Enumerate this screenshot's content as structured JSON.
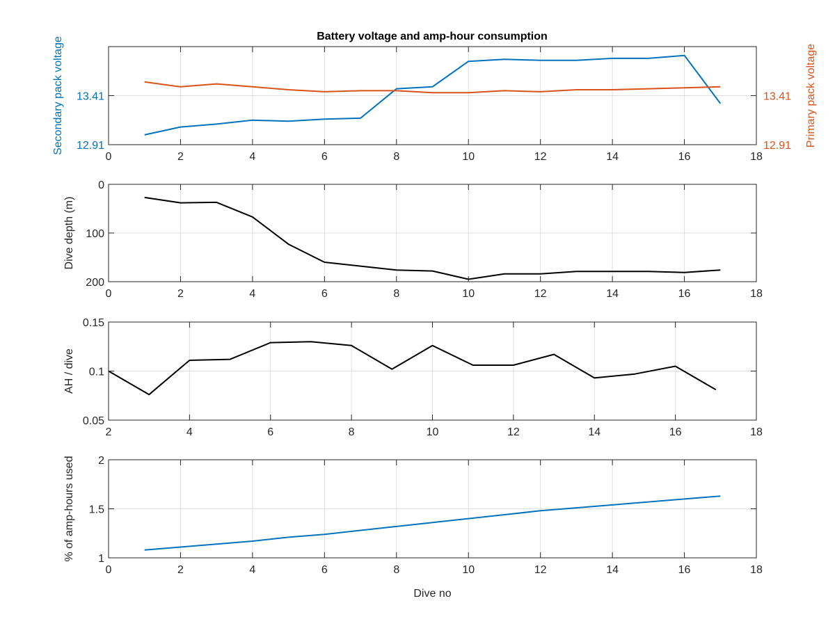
{
  "figure": {
    "title": "Battery voltage and amp-hour consumption",
    "colors": {
      "blue": "#0072BD",
      "orange": "#D95319",
      "black": "#000000",
      "grid": "#DFDFDF",
      "axis": "#262626"
    }
  },
  "chart_data": [
    {
      "type": "line",
      "title": "Battery voltage and amp-hour consumption",
      "xlabel": "",
      "ylabel": "Secondary pack voltage",
      "ylabel_right": "Primary pack voltage",
      "xlim": [
        0,
        18
      ],
      "xticks": [
        0,
        2,
        4,
        6,
        8,
        10,
        12,
        14,
        16,
        18
      ],
      "ylim": [
        12.91,
        13.91
      ],
      "yticks": [
        12.91,
        13.41
      ],
      "ylim_right": [
        12.91,
        13.91
      ],
      "yticks_right": [
        12.91,
        13.41
      ],
      "grid": true,
      "series": [
        {
          "axis": "left",
          "color": "#0072BD",
          "x": [
            1,
            2,
            3,
            4,
            5,
            6,
            7,
            8,
            9,
            10,
            11,
            12,
            13,
            14,
            15,
            16,
            17
          ],
          "values": [
            13.01,
            13.09,
            13.12,
            13.16,
            13.15,
            13.17,
            13.18,
            13.48,
            13.5,
            13.76,
            13.78,
            13.77,
            13.77,
            13.79,
            13.79,
            13.82,
            13.33
          ]
        },
        {
          "axis": "right",
          "color": "#D95319",
          "x": [
            1,
            2,
            3,
            4,
            5,
            6,
            7,
            8,
            9,
            10,
            11,
            12,
            13,
            14,
            15,
            16,
            17
          ],
          "values": [
            13.55,
            13.5,
            13.53,
            13.5,
            13.47,
            13.45,
            13.46,
            13.46,
            13.44,
            13.44,
            13.46,
            13.45,
            13.47,
            13.47,
            13.48,
            13.49,
            13.5
          ]
        }
      ]
    },
    {
      "type": "line",
      "xlabel": "",
      "ylabel": "Dive depth (m)",
      "xlim": [
        0,
        18
      ],
      "xticks": [
        0,
        2,
        4,
        6,
        8,
        10,
        12,
        14,
        16,
        18
      ],
      "ylim": [
        0,
        200
      ],
      "yticks": [
        0,
        100,
        200
      ],
      "y_reversed": true,
      "grid": true,
      "series": [
        {
          "color": "#000000",
          "x": [
            1,
            2,
            3,
            4,
            5,
            6,
            7,
            8,
            9,
            10,
            11,
            12,
            13,
            14,
            15,
            16,
            17
          ],
          "values": [
            27,
            38,
            37,
            67,
            123,
            160,
            168,
            176,
            178,
            195,
            184,
            184,
            179,
            179,
            179,
            181,
            176
          ]
        }
      ]
    },
    {
      "type": "line",
      "xlabel": "",
      "ylabel": "AH / dive",
      "xlim": [
        2,
        18
      ],
      "xticks": [
        2,
        4,
        6,
        8,
        10,
        12,
        14,
        16,
        18
      ],
      "ylim": [
        0.05,
        0.15
      ],
      "yticks": [
        0.05,
        0.1,
        0.15
      ],
      "grid": true,
      "series": [
        {
          "color": "#000000",
          "x": [
            2,
            3,
            4,
            5,
            6,
            7,
            8,
            9,
            10,
            11,
            12,
            13,
            14,
            15,
            16,
            17
          ],
          "values": [
            0.1,
            0.076,
            0.111,
            0.112,
            0.129,
            0.13,
            0.126,
            0.102,
            0.126,
            0.106,
            0.106,
            0.117,
            0.093,
            0.097,
            0.105,
            0.081
          ]
        }
      ]
    },
    {
      "type": "line",
      "xlabel": "Dive no",
      "ylabel": "% of amp-hours used",
      "xlim": [
        0,
        18
      ],
      "xticks": [
        0,
        2,
        4,
        6,
        8,
        10,
        12,
        14,
        16,
        18
      ],
      "ylim": [
        1,
        2
      ],
      "yticks": [
        1,
        1.5,
        2
      ],
      "grid": true,
      "series": [
        {
          "color": "#0072BD",
          "x": [
            1,
            2,
            3,
            4,
            5,
            6,
            7,
            8,
            9,
            10,
            11,
            12,
            13,
            14,
            15,
            16,
            17
          ],
          "values": [
            1.08,
            1.11,
            1.14,
            1.17,
            1.21,
            1.24,
            1.28,
            1.32,
            1.36,
            1.4,
            1.44,
            1.48,
            1.51,
            1.54,
            1.57,
            1.6,
            1.63
          ]
        }
      ]
    }
  ]
}
